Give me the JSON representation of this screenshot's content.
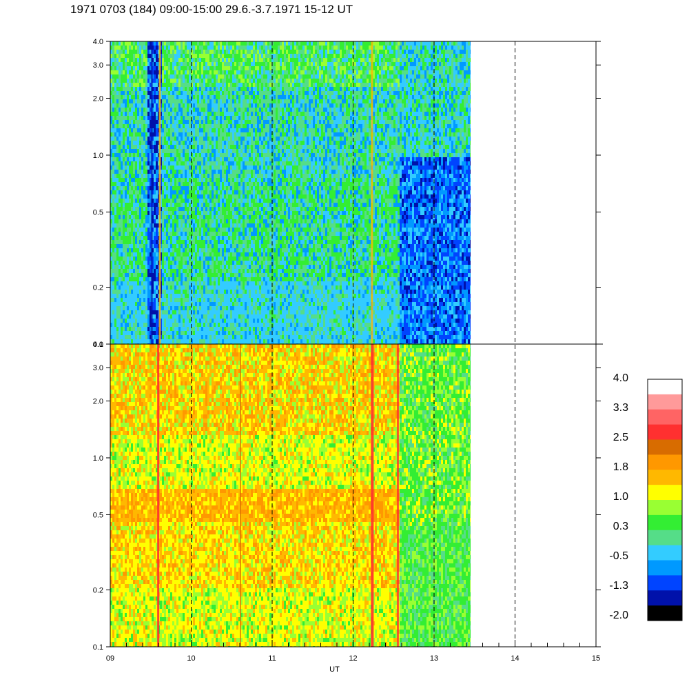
{
  "title": "1971 0703 (184) 09:00-15:00 29.6.-3.7.1971  15-12 UT",
  "chart_data": [
    {
      "type": "heatmap",
      "panel": "upper",
      "x_range": [
        9,
        15
      ],
      "data_extent_x": [
        9,
        13.45
      ],
      "y_scale": "log",
      "y_range": [
        0.1,
        4.0
      ],
      "y_ticks": [
        "4.0",
        "3.0",
        "2.0",
        "1.0",
        "0.5",
        "0.2",
        "0.1"
      ],
      "y_tick_values": [
        4.0,
        3.0,
        2.0,
        1.0,
        0.5,
        0.2,
        0.1
      ],
      "dashed_hour_lines": [
        10,
        11,
        12,
        13,
        14
      ],
      "dominant_level_by_region": [
        {
          "x": [
            9.0,
            9.45
          ],
          "level": "-0.5 to 0.3"
        },
        {
          "x": [
            9.45,
            9.65
          ],
          "level": "-2.0 to -1.3"
        },
        {
          "x": [
            9.65,
            12.55
          ],
          "level": "-0.5 to 0.3"
        },
        {
          "x": [
            12.55,
            13.45
          ],
          "level": "-2.0 to -0.5"
        }
      ]
    },
    {
      "type": "heatmap",
      "panel": "lower",
      "x_range": [
        9,
        15
      ],
      "data_extent_x": [
        9,
        13.45
      ],
      "y_scale": "log",
      "y_range": [
        0.1,
        4.0
      ],
      "y_ticks": [
        "4.0",
        "3.0",
        "2.0",
        "1.0",
        "0.5",
        "0.2",
        "0.1"
      ],
      "y_tick_values": [
        4.0,
        3.0,
        2.0,
        1.0,
        0.5,
        0.2,
        0.1
      ],
      "x_ticks": [
        "09",
        "10",
        "11",
        "12",
        "13",
        "14",
        "15"
      ],
      "x_tick_values": [
        9,
        10,
        11,
        12,
        13,
        14,
        15
      ],
      "xlabel": "UT",
      "dashed_hour_lines": [
        10,
        11,
        12,
        13,
        14
      ],
      "dominant_level_by_region": [
        {
          "x": [
            9.0,
            12.5
          ],
          "level": "1.0 to 1.8"
        },
        {
          "x": [
            12.5,
            13.45
          ],
          "level": "0.3 to 1.0"
        }
      ]
    }
  ],
  "colorbar": {
    "labels": [
      "4.0",
      "3.3",
      "2.5",
      "1.8",
      "1.0",
      "0.3",
      "-0.5",
      "-1.3",
      "-2.0"
    ],
    "colors": [
      "#ffffff",
      "#ff9a9a",
      "#ff6464",
      "#ff3030",
      "#d86c00",
      "#ff9800",
      "#ffb800",
      "#ffff00",
      "#99ff33",
      "#33ee33",
      "#55dd88",
      "#33ccff",
      "#0099ff",
      "#0044ff",
      "#0011aa",
      "#000000"
    ]
  }
}
